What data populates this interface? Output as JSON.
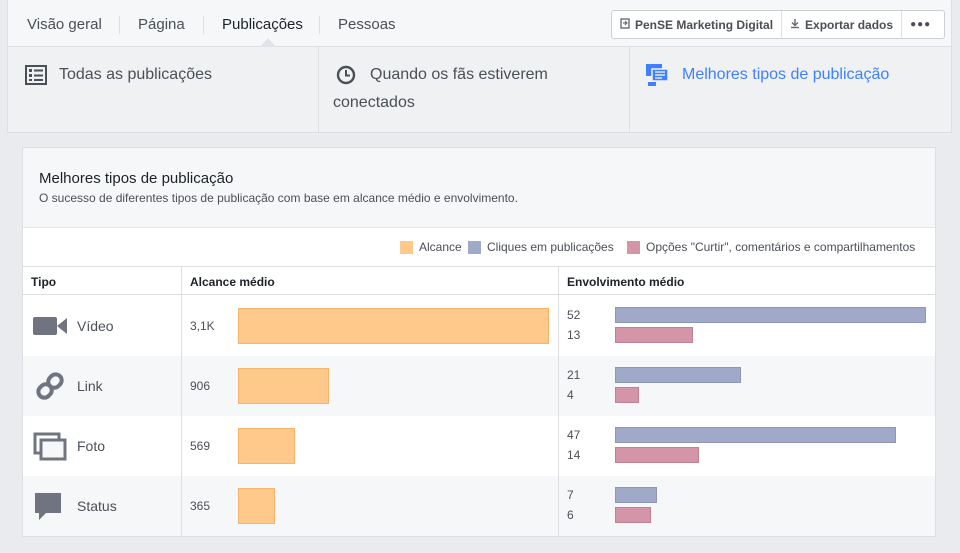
{
  "tabs": [
    {
      "label": "Visão geral"
    },
    {
      "label": "Página"
    },
    {
      "label": "Publicações"
    },
    {
      "label": "Pessoas"
    }
  ],
  "toolbar": {
    "page_label": "PenSE Marketing Digital",
    "export_label": "Exportar dados",
    "more_label": "●●●"
  },
  "subtabs": {
    "all": "Todas as publicações",
    "when_line1": "Quando os fãs estiverem",
    "when_line2": "conectados",
    "best": "Melhores tipos de publicação"
  },
  "panel": {
    "title": "Melhores tipos de publicação",
    "subtitle": "O sucesso de diferentes tipos de publicação com base em alcance médio e envolvimento."
  },
  "legend": {
    "reach": "Alcance",
    "clicks": "Cliques em publicações",
    "likes": "Opções \"Curtir\", comentários e compartilhamentos"
  },
  "colors": {
    "reach": "#ffc98c",
    "clicks": "#a0aac8",
    "likes": "#d495a8",
    "accent": "#4080ff"
  },
  "table": {
    "headers": {
      "type": "Tipo",
      "reach": "Alcance médio",
      "engagement": "Envolvimento médio"
    },
    "rows": [
      {
        "type": "Vídeo",
        "icon": "video-icon",
        "reach_label": "3,1K",
        "reach": 3100,
        "clicks": 52,
        "likes": 13
      },
      {
        "type": "Link",
        "icon": "link-icon",
        "reach_label": "906",
        "reach": 906,
        "clicks": 21,
        "likes": 4
      },
      {
        "type": "Foto",
        "icon": "photo-icon",
        "reach_label": "569",
        "reach": 569,
        "clicks": 47,
        "likes": 14
      },
      {
        "type": "Status",
        "icon": "status-icon",
        "reach_label": "365",
        "reach": 365,
        "clicks": 7,
        "likes": 6
      }
    ]
  },
  "chart_data": {
    "type": "bar",
    "categories": [
      "Vídeo",
      "Link",
      "Foto",
      "Status"
    ],
    "series": [
      {
        "name": "Alcance",
        "values": [
          3100,
          906,
          569,
          365
        ]
      },
      {
        "name": "Cliques em publicações",
        "values": [
          52,
          21,
          47,
          7
        ]
      },
      {
        "name": "Opções \"Curtir\", comentários e compartilhamentos",
        "values": [
          13,
          4,
          14,
          6
        ]
      }
    ],
    "legend": "top-right"
  }
}
